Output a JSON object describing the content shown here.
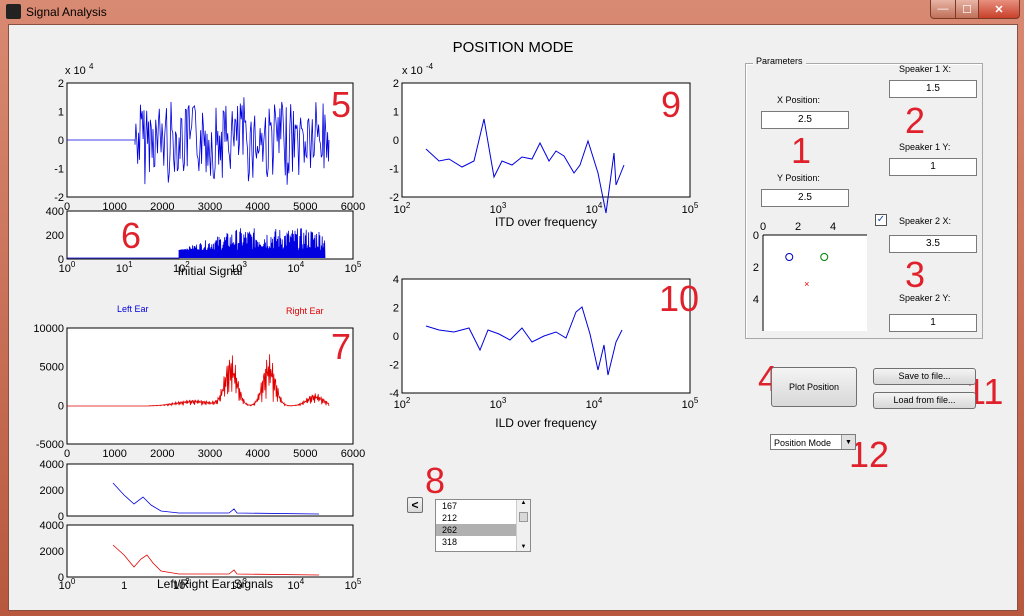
{
  "window": {
    "title": "Signal Analysis",
    "min_glyph": "—",
    "max_glyph": "☐",
    "close_glyph": "✕"
  },
  "heading": "POSITION MODE",
  "annotations": [
    "1",
    "2",
    "3",
    "4",
    "5",
    "6",
    "7",
    "8",
    "9",
    "10",
    "11",
    "12"
  ],
  "plot5": {
    "exponent_label": "x 10^4",
    "yticks": [
      "2",
      "1",
      "0",
      "-1",
      "-2"
    ],
    "xticks": [
      "0",
      "1000",
      "2000",
      "3000",
      "4000",
      "5000",
      "6000"
    ]
  },
  "plot6": {
    "yticks": [
      "400",
      "200",
      "0"
    ],
    "xticks": [
      "10^0",
      "10^1",
      "10^2",
      "10^3",
      "10^4",
      "10^5"
    ],
    "xlabel": "Initial Signal"
  },
  "plot9": {
    "exponent_label": "x 10^-4",
    "yticks": [
      "2",
      "1",
      "0",
      "-1",
      "-2"
    ],
    "xticks": [
      "10^2",
      "10^3",
      "10^4",
      "10^5"
    ],
    "xlabel": "ITD over frequency"
  },
  "plot10": {
    "yticks": [
      "4",
      "2",
      "0",
      "-2",
      "-4"
    ],
    "xticks": [
      "10^2",
      "10^3",
      "10^4",
      "10^5"
    ],
    "xlabel": "ILD over frequency"
  },
  "plot7": {
    "left_label": "Left Ear",
    "right_label": "Right Ear",
    "yticks": [
      "10000",
      "5000",
      "0",
      "-5000"
    ],
    "xticks": [
      "0",
      "1000",
      "2000",
      "3000",
      "4000",
      "5000",
      "6000"
    ],
    "colors": {
      "left": "#0000e0",
      "right": "#e00000"
    }
  },
  "plot_lr_top": {
    "yticks": [
      "4000",
      "2000",
      "0"
    ]
  },
  "plot_lr_bottom": {
    "yticks": [
      "4000",
      "2000",
      "0"
    ],
    "xticks": [
      "10^0",
      "1",
      "10^2",
      "10^3",
      "10^4",
      "10^5"
    ],
    "xlabel": "Left/Right Ear Signals"
  },
  "params": {
    "title": "Parameters",
    "x_position": {
      "label": "X Position:",
      "value": "2.5"
    },
    "y_position": {
      "label": "Y Position:",
      "value": "2.5"
    },
    "speaker1_x": {
      "label": "Speaker 1 X:",
      "value": "1.5"
    },
    "speaker1_y": {
      "label": "Speaker 1 Y:",
      "value": "1"
    },
    "speaker2_x": {
      "label": "Speaker 2 X:",
      "value": "3.5",
      "checked": true
    },
    "speaker2_y": {
      "label": "Speaker 2 Y:",
      "value": "1"
    },
    "mini_plot": {
      "xticks": [
        "0",
        "2",
        "4"
      ],
      "yticks": [
        "0",
        "2",
        "4"
      ],
      "speaker1": {
        "x": 1.5,
        "y": 1
      },
      "speaker2": {
        "x": 3.5,
        "y": 1
      },
      "listener": {
        "x": 2.5,
        "y": 2.5
      }
    }
  },
  "buttons": {
    "plot": "Plot Position",
    "save": "Save to file...",
    "load": "Load from file...",
    "back": "<"
  },
  "mode_select": {
    "value": "Position Mode"
  },
  "listbox": {
    "items": [
      "167",
      "212",
      "262",
      "318"
    ],
    "selected": 2
  }
}
